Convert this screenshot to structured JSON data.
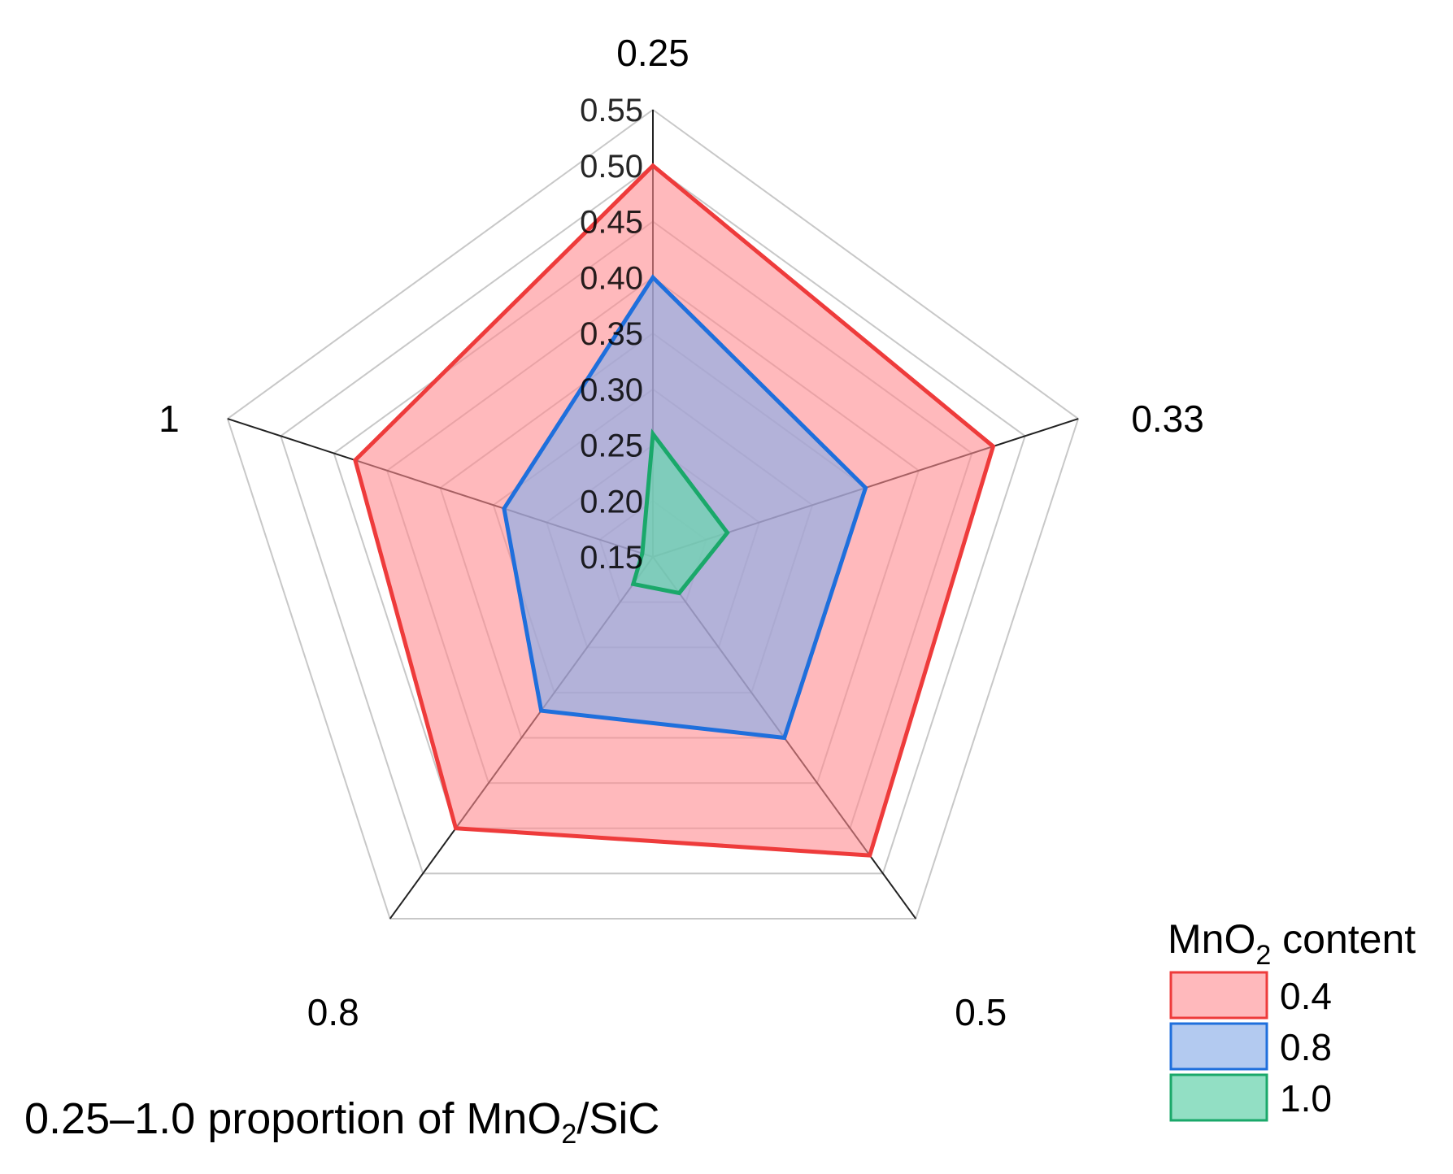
{
  "chart_data": {
    "type": "radar",
    "axes": [
      "0.25",
      "0.33",
      "0.5",
      "0.8",
      "1"
    ],
    "radial_range": [
      0.15,
      0.55
    ],
    "radial_ticks": [
      0.15,
      0.2,
      0.25,
      0.3,
      0.35,
      0.4,
      0.45,
      0.5,
      0.55
    ],
    "radial_tick_labels": [
      "0.15",
      "0.20",
      "0.25",
      "0.30",
      "0.35",
      "0.40",
      "0.45",
      "0.50",
      "0.55"
    ],
    "grid": true,
    "legend_title": "MnO2 content",
    "legend_title_main": "MnO",
    "legend_title_sub": "2",
    "legend_title_rest": " content",
    "legend_position": "bottom-right",
    "series": [
      {
        "name": "0.4",
        "values": [
          0.5,
          0.47,
          0.48,
          0.45,
          0.43
        ],
        "stroke": "#ee3b3b",
        "fill": "#ff8a8f",
        "fill_opacity": 0.6
      },
      {
        "name": "0.8",
        "values": [
          0.4,
          0.35,
          0.35,
          0.32,
          0.29
        ],
        "stroke": "#1f6fdc",
        "fill": "#8aaee8",
        "fill_opacity": 0.65
      },
      {
        "name": "1.0",
        "values": [
          0.26,
          0.22,
          0.19,
          0.18,
          0.16
        ],
        "stroke": "#1aa86a",
        "fill": "#6ed4b0",
        "fill_opacity": 0.75
      }
    ],
    "caption": "0.25–1.0 proportion of MnO2/SiC",
    "caption_a": "0.25–1.0 proportion of MnO",
    "caption_sub": "2",
    "caption_b": "/SiC"
  }
}
